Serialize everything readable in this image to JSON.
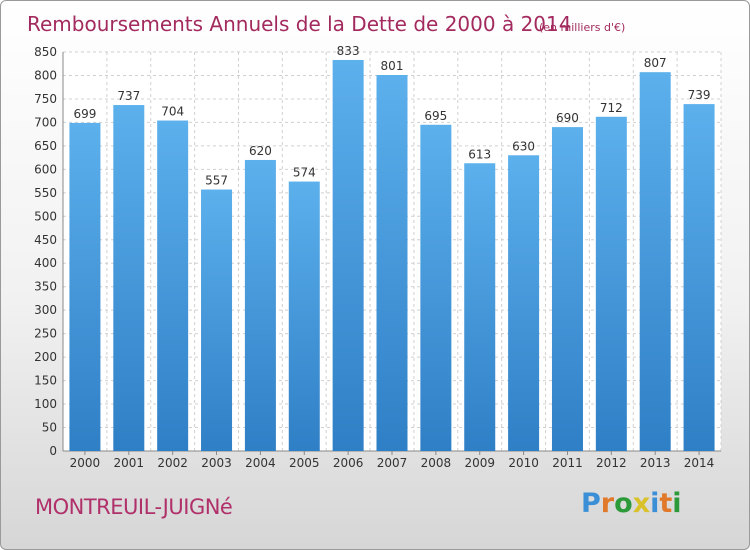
{
  "chart_data": {
    "type": "bar",
    "title": "Remboursements Annuels de la Dette de 2000 à 2014",
    "unit": "(en milliers d'€)",
    "categories": [
      "2000",
      "2001",
      "2002",
      "2003",
      "2004",
      "2005",
      "2006",
      "2007",
      "2008",
      "2009",
      "2010",
      "2011",
      "2012",
      "2013",
      "2014"
    ],
    "values": [
      699,
      737,
      704,
      557,
      620,
      574,
      833,
      801,
      695,
      613,
      630,
      690,
      712,
      807,
      739
    ],
    "ylim": [
      0,
      850
    ],
    "yticks": [
      0,
      50,
      100,
      150,
      200,
      250,
      300,
      350,
      400,
      450,
      500,
      550,
      600,
      650,
      700,
      750,
      800,
      850
    ],
    "grid": true,
    "bar_color": "#4a9fe0"
  },
  "footer": {
    "city": "MONTREUIL-JUIGNé",
    "logo": "Proxiti",
    "logo_colors": [
      "#3b8fd6",
      "#e0792a",
      "#2d9a3a",
      "#d9c12a",
      "#3b8fd6",
      "#e0792a",
      "#2d9a3a"
    ]
  }
}
